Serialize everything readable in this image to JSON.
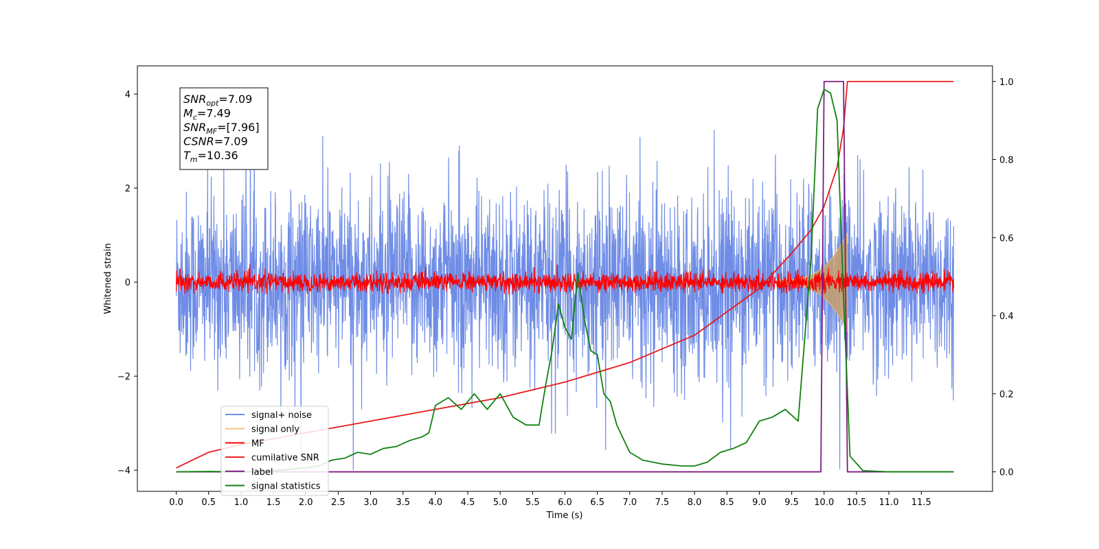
{
  "chart_data": {
    "type": "line",
    "xlabel": "Time (s)",
    "ylabel": "Whitened strain",
    "xlim": [
      -0.6,
      12.6
    ],
    "ylim": [
      -4.45,
      4.6
    ],
    "y2lim": [
      -0.05,
      1.04
    ],
    "grid": false,
    "legend_position": "lower-left",
    "x_ticks": [
      "0.0",
      "0.5",
      "1.0",
      "1.5",
      "2.0",
      "2.5",
      "3.0",
      "3.5",
      "4.0",
      "4.5",
      "5.0",
      "5.5",
      "6.0",
      "6.5",
      "7.0",
      "7.5",
      "8.0",
      "8.5",
      "9.0",
      "9.5",
      "10.0",
      "10.5",
      "11.0",
      "11.5"
    ],
    "y_ticks": [
      "−4",
      "−2",
      "0",
      "2",
      "4"
    ],
    "y2_ticks": [
      "0.0",
      "0.2",
      "0.4",
      "0.6",
      "0.8",
      "1.0"
    ],
    "info_box": [
      {
        "base": "SNR",
        "sub": "opt",
        "rest": "=7.09"
      },
      {
        "base": "M",
        "sub": "c",
        "rest": "=7.49"
      },
      {
        "base": "SNR",
        "sub": "MF",
        "rest": "=[7.96]"
      },
      {
        "base": "CSNR",
        "sub": "",
        "rest": "=7.09"
      },
      {
        "base": "T",
        "sub": "m",
        "rest": "=10.36"
      }
    ],
    "series": [
      {
        "name": "signal+ noise",
        "color": "#6f8de6",
        "axis": "left",
        "envelope": {
          "x_range": [
            0.0,
            12.0
          ],
          "amplitude": 2.7
        }
      },
      {
        "name": "signal only",
        "color": "#f5c07a",
        "axis": "left",
        "envelope": {
          "x_range": [
            9.3,
            10.36
          ],
          "peak_amplitude": 1.0
        }
      },
      {
        "name": "MF",
        "color": "#ff0000",
        "axis": "left",
        "envelope": {
          "x_range": [
            0.0,
            12.0
          ],
          "amplitude": 0.3
        }
      },
      {
        "name": "cumilative SNR",
        "color": "#e8191b",
        "axis": "right",
        "x": [
          0.0,
          0.5,
          1.0,
          2.0,
          3.0,
          4.0,
          5.0,
          6.0,
          7.0,
          8.0,
          8.5,
          9.0,
          9.5,
          9.8,
          10.0,
          10.2,
          10.3,
          10.36,
          12.0
        ],
        "values": [
          0.01,
          0.05,
          0.07,
          0.1,
          0.13,
          0.16,
          0.19,
          0.23,
          0.28,
          0.35,
          0.41,
          0.47,
          0.56,
          0.62,
          0.68,
          0.78,
          0.88,
          1.0,
          1.0
        ]
      },
      {
        "name": "label",
        "color": "#7b1c82",
        "axis": "right",
        "x": [
          0.0,
          9.95,
          10.0,
          10.3,
          10.36,
          12.0
        ],
        "values": [
          0.0,
          0.0,
          1.0,
          1.0,
          0.0,
          0.0
        ]
      },
      {
        "name": "signal statistics",
        "color": "#108010",
        "axis": "right",
        "x": [
          0.0,
          0.5,
          1.0,
          1.5,
          2.0,
          2.2,
          2.4,
          2.6,
          2.8,
          3.0,
          3.2,
          3.4,
          3.6,
          3.8,
          3.9,
          4.0,
          4.2,
          4.4,
          4.6,
          4.8,
          5.0,
          5.2,
          5.4,
          5.5,
          5.6,
          5.7,
          5.8,
          5.9,
          6.0,
          6.1,
          6.2,
          6.3,
          6.4,
          6.5,
          6.6,
          6.7,
          6.8,
          7.0,
          7.2,
          7.5,
          7.8,
          8.0,
          8.2,
          8.4,
          8.6,
          8.8,
          9.0,
          9.2,
          9.4,
          9.6,
          9.8,
          9.9,
          10.0,
          10.1,
          10.2,
          10.3,
          10.4,
          10.6,
          11.0,
          12.0
        ],
        "values": [
          0.0,
          0.001,
          0.0,
          0.003,
          0.01,
          0.015,
          0.03,
          0.035,
          0.05,
          0.045,
          0.06,
          0.065,
          0.08,
          0.09,
          0.1,
          0.17,
          0.19,
          0.16,
          0.2,
          0.16,
          0.2,
          0.14,
          0.12,
          0.12,
          0.12,
          0.22,
          0.31,
          0.43,
          0.37,
          0.34,
          0.51,
          0.39,
          0.31,
          0.3,
          0.2,
          0.18,
          0.12,
          0.05,
          0.03,
          0.02,
          0.015,
          0.015,
          0.025,
          0.05,
          0.06,
          0.075,
          0.13,
          0.14,
          0.16,
          0.13,
          0.55,
          0.93,
          0.98,
          0.97,
          0.9,
          0.45,
          0.04,
          0.003,
          0.0,
          0.0
        ]
      }
    ]
  }
}
